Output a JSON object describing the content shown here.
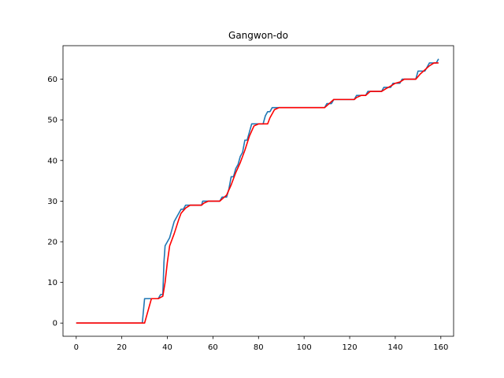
{
  "chart_data": {
    "type": "line",
    "title": "Gangwon-do",
    "xlabel": "",
    "ylabel": "",
    "xlim": [
      -5.8,
      165.6
    ],
    "ylim": [
      -3.25,
      68.25
    ],
    "xticks": [
      0,
      20,
      40,
      60,
      80,
      100,
      120,
      140,
      160
    ],
    "yticks": [
      0,
      10,
      20,
      30,
      40,
      50,
      60
    ],
    "grid": false,
    "series": [
      {
        "color": "#1f77b4",
        "points": [
          [
            0,
            0
          ],
          [
            29,
            0
          ],
          [
            30,
            6
          ],
          [
            36,
            6
          ],
          [
            37,
            7
          ],
          [
            38,
            7
          ],
          [
            38.5,
            15
          ],
          [
            39,
            19
          ],
          [
            41,
            21
          ],
          [
            43,
            25
          ],
          [
            45,
            27
          ],
          [
            46,
            28
          ],
          [
            47,
            28
          ],
          [
            48,
            29
          ],
          [
            55,
            29
          ],
          [
            55.5,
            30
          ],
          [
            63,
            30
          ],
          [
            64,
            31
          ],
          [
            66,
            31
          ],
          [
            67,
            33
          ],
          [
            68,
            36
          ],
          [
            69,
            36
          ],
          [
            70,
            38
          ],
          [
            71,
            39
          ],
          [
            72,
            41
          ],
          [
            73,
            42
          ],
          [
            74,
            45
          ],
          [
            75,
            45
          ],
          [
            76,
            47
          ],
          [
            77,
            49
          ],
          [
            82,
            49
          ],
          [
            83,
            51
          ],
          [
            84,
            52
          ],
          [
            85,
            52
          ],
          [
            86,
            53
          ],
          [
            109,
            53
          ],
          [
            110,
            54
          ],
          [
            112,
            54
          ],
          [
            113,
            55
          ],
          [
            122,
            55
          ],
          [
            123,
            56
          ],
          [
            127,
            56
          ],
          [
            128,
            57
          ],
          [
            134,
            57
          ],
          [
            135,
            58
          ],
          [
            138,
            58
          ],
          [
            139,
            59
          ],
          [
            142,
            59
          ],
          [
            143,
            60
          ],
          [
            149,
            60
          ],
          [
            150,
            62
          ],
          [
            153,
            62
          ],
          [
            154,
            63
          ],
          [
            155,
            64
          ],
          [
            158,
            64
          ],
          [
            159,
            65
          ]
        ]
      },
      {
        "color": "#ff0000",
        "points": [
          [
            0,
            0
          ],
          [
            30,
            0
          ],
          [
            33,
            6
          ],
          [
            35,
            6
          ],
          [
            36,
            6
          ],
          [
            37,
            6.3
          ],
          [
            38,
            6.6
          ],
          [
            39,
            10
          ],
          [
            40,
            15
          ],
          [
            41,
            19
          ],
          [
            43,
            22
          ],
          [
            45,
            25.5
          ],
          [
            46,
            27
          ],
          [
            48,
            28.3
          ],
          [
            50,
            29
          ],
          [
            55,
            29
          ],
          [
            56,
            29.5
          ],
          [
            58,
            30
          ],
          [
            63,
            30
          ],
          [
            64,
            30.5
          ],
          [
            66,
            31.5
          ],
          [
            68,
            34
          ],
          [
            69,
            35.5
          ],
          [
            70,
            37
          ],
          [
            72,
            39.5
          ],
          [
            74,
            42.5
          ],
          [
            76,
            46
          ],
          [
            78,
            48.5
          ],
          [
            80,
            49
          ],
          [
            84,
            49
          ],
          [
            85,
            50.5
          ],
          [
            87,
            52.5
          ],
          [
            89,
            53
          ],
          [
            109,
            53
          ],
          [
            111,
            54
          ],
          [
            113,
            55
          ],
          [
            122,
            55
          ],
          [
            123,
            55.5
          ],
          [
            125,
            56
          ],
          [
            127,
            56
          ],
          [
            129,
            57
          ],
          [
            134,
            57
          ],
          [
            136,
            57.7
          ],
          [
            138,
            58.3
          ],
          [
            140,
            59
          ],
          [
            142,
            59.3
          ],
          [
            144,
            60
          ],
          [
            149,
            60
          ],
          [
            151,
            61.3
          ],
          [
            153,
            62.3
          ],
          [
            155,
            63.3
          ],
          [
            157,
            64
          ],
          [
            159,
            64
          ]
        ]
      }
    ]
  }
}
